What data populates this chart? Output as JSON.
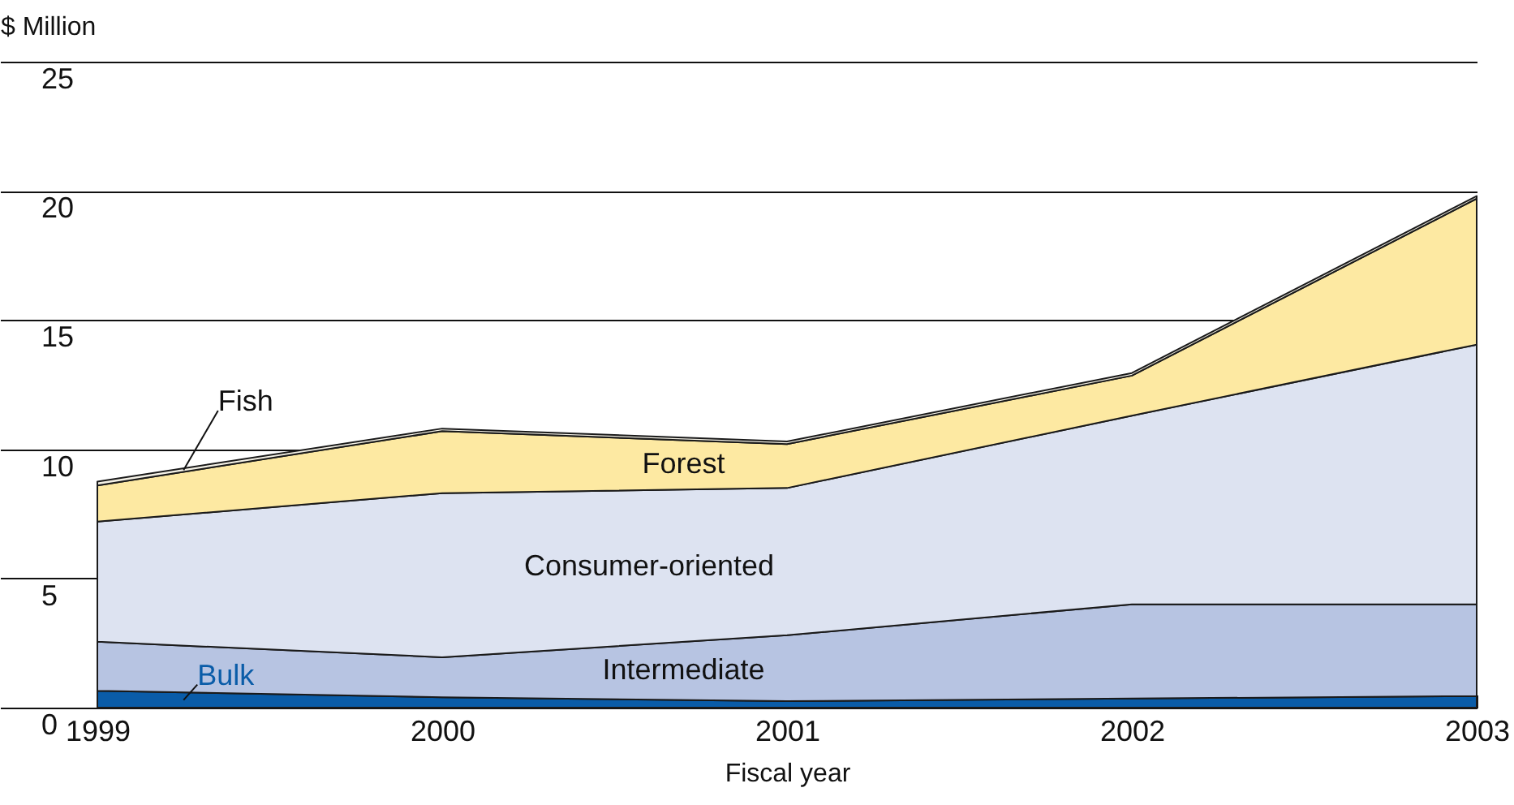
{
  "chart_data": {
    "type": "area",
    "stacked": true,
    "ylabel": "$ Million",
    "xlabel": "Fiscal year",
    "x": [
      1999,
      2000,
      2001,
      2002,
      2003
    ],
    "xlim": [
      1999,
      2003
    ],
    "xticks": [
      1999,
      2000,
      2001,
      2002,
      2003
    ],
    "ylim": [
      0,
      25
    ],
    "yticks": [
      0,
      5,
      10,
      15,
      20,
      25
    ],
    "grid": "y",
    "series": [
      {
        "name": "Bulk",
        "color": "#0a5ca8",
        "values": [
          0.65,
          0.4,
          0.25,
          0.35,
          0.45
        ]
      },
      {
        "name": "Intermediate",
        "color": "#b7c4e2",
        "values": [
          1.9,
          1.55,
          2.55,
          3.65,
          3.55
        ]
      },
      {
        "name": "Consumer-oriented",
        "color": "#dde3f1",
        "values": [
          4.65,
          6.35,
          5.7,
          7.3,
          10.05
        ]
      },
      {
        "name": "Forest",
        "color": "#fde9a2",
        "values": [
          1.4,
          2.4,
          1.7,
          1.55,
          5.65
        ]
      },
      {
        "name": "Fish",
        "color": "#f4f1e6",
        "values": [
          0.15,
          0.1,
          0.1,
          0.1,
          0.1
        ]
      }
    ]
  }
}
